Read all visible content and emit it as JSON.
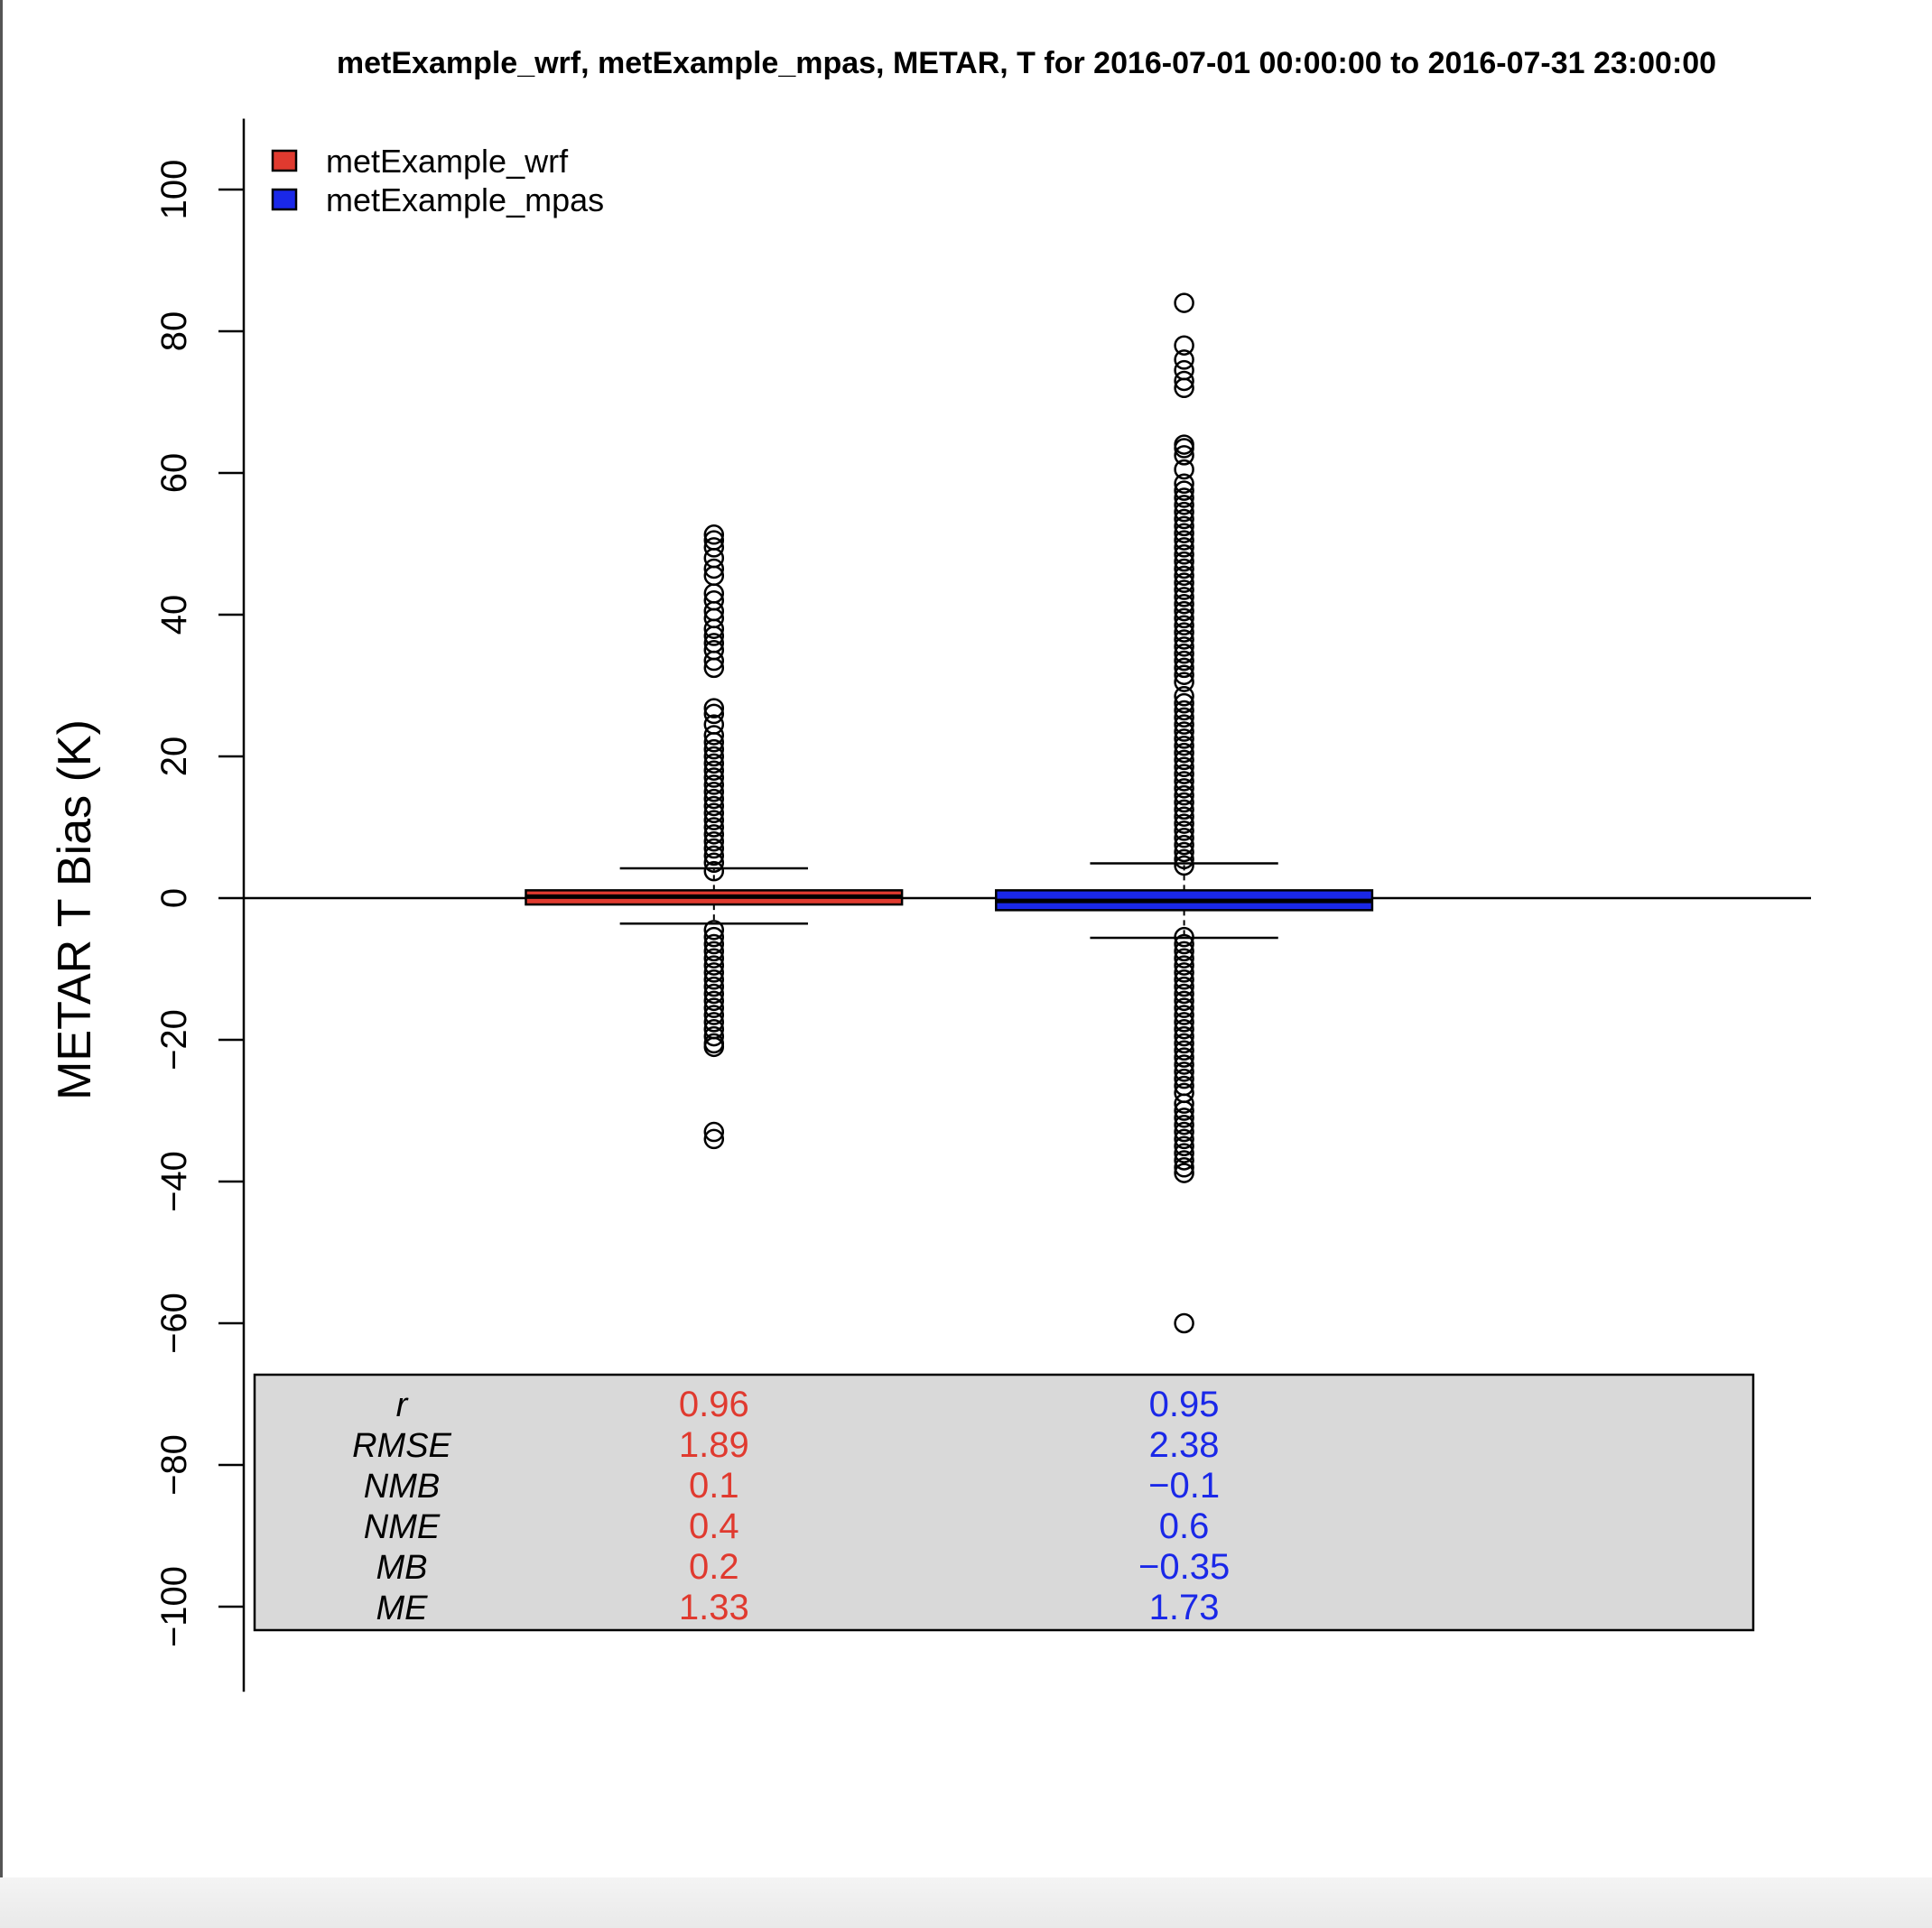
{
  "chart_data": {
    "type": "box",
    "title": "metExample_wrf, metExample_mpas, METAR, T for 2016-07-01 00:00:00 to 2016-07-31 23:00:00",
    "xlabel": "",
    "ylabel": "METAR T Bias (K)",
    "ylim": [
      -112,
      110
    ],
    "yticks": [
      -100,
      -80,
      -60,
      -40,
      -20,
      0,
      20,
      40,
      60,
      80,
      100
    ],
    "ytick_labels": [
      "−100",
      "−80",
      "−60",
      "−40",
      "−20",
      "0",
      "20",
      "40",
      "60",
      "80",
      "100"
    ],
    "reference_line": 0,
    "legend": {
      "position": "top-left"
    },
    "series": [
      {
        "name": "metExample_wrf",
        "color": "#e03a2f",
        "whisker_low": -3.6,
        "q1": -0.9,
        "median": 0.2,
        "q3": 1.1,
        "whisker_high": 4.2,
        "outliers_high": [
          3.8,
          5,
          6,
          7,
          8,
          9,
          10,
          11,
          12,
          13,
          14,
          15,
          16,
          17,
          18,
          19,
          20,
          21,
          22,
          23,
          24.5,
          26,
          26.8,
          32.5,
          33.5,
          35,
          36,
          37,
          38,
          39.5,
          40.5,
          42,
          43,
          45.5,
          46.5,
          48,
          49.5,
          50.5,
          51.3
        ],
        "outliers_low": [
          -4.5,
          -5.5,
          -6.5,
          -7.5,
          -8.5,
          -9.5,
          -10.5,
          -11.5,
          -12.5,
          -13.5,
          -14.5,
          -15.5,
          -16.5,
          -17.5,
          -18.5,
          -19.5,
          -20.5,
          -21,
          -33,
          -34
        ],
        "stats": [
          "0.96",
          "1.89",
          "0.1",
          "0.4",
          "0.2",
          "1.33"
        ]
      },
      {
        "name": "metExample_mpas",
        "color": "#1a28e8",
        "whisker_low": -5.6,
        "q1": -1.7,
        "median": -0.4,
        "q3": 1.1,
        "whisker_high": 4.9,
        "outliers_high": [
          4.6,
          5.5,
          6.5,
          7.5,
          8.5,
          9.5,
          10.5,
          11.5,
          12.5,
          13.5,
          14.5,
          15.5,
          16.5,
          17.5,
          18.5,
          19.5,
          20.5,
          21.5,
          22.5,
          23.5,
          24.5,
          25.5,
          26.5,
          27.5,
          28.5,
          30.5,
          31.5,
          32.5,
          33.5,
          34.5,
          35.5,
          36.5,
          37.5,
          38.5,
          39.5,
          40.5,
          41.5,
          42.5,
          43.5,
          44.5,
          45.5,
          46.5,
          47.5,
          48.5,
          49.5,
          50.5,
          51.5,
          52.5,
          53.5,
          54.5,
          55.5,
          56.5,
          57.5,
          58.5,
          60.5,
          62.5,
          63.5,
          64,
          72,
          73,
          74.5,
          76,
          78,
          84
        ],
        "outliers_low": [
          -5.5,
          -6.5,
          -7.5,
          -8.5,
          -9.5,
          -10.5,
          -11.5,
          -12.5,
          -13.5,
          -14.5,
          -15.5,
          -16.5,
          -17.5,
          -18.5,
          -19.5,
          -20.5,
          -21.5,
          -22.5,
          -23.5,
          -24.5,
          -25.5,
          -26.5,
          -27.5,
          -29,
          -30,
          -31,
          -32,
          -33,
          -34,
          -35,
          -36,
          -37,
          -38,
          -38.8,
          -60
        ],
        "stats": [
          "0.95",
          "2.38",
          "−0.1",
          "0.6",
          "−0.35",
          "1.73"
        ]
      }
    ],
    "stats_table": {
      "row_labels": [
        "r",
        "RMSE",
        "NMB",
        "NME",
        "MB",
        "ME"
      ],
      "background": "#d9d9d9"
    }
  }
}
